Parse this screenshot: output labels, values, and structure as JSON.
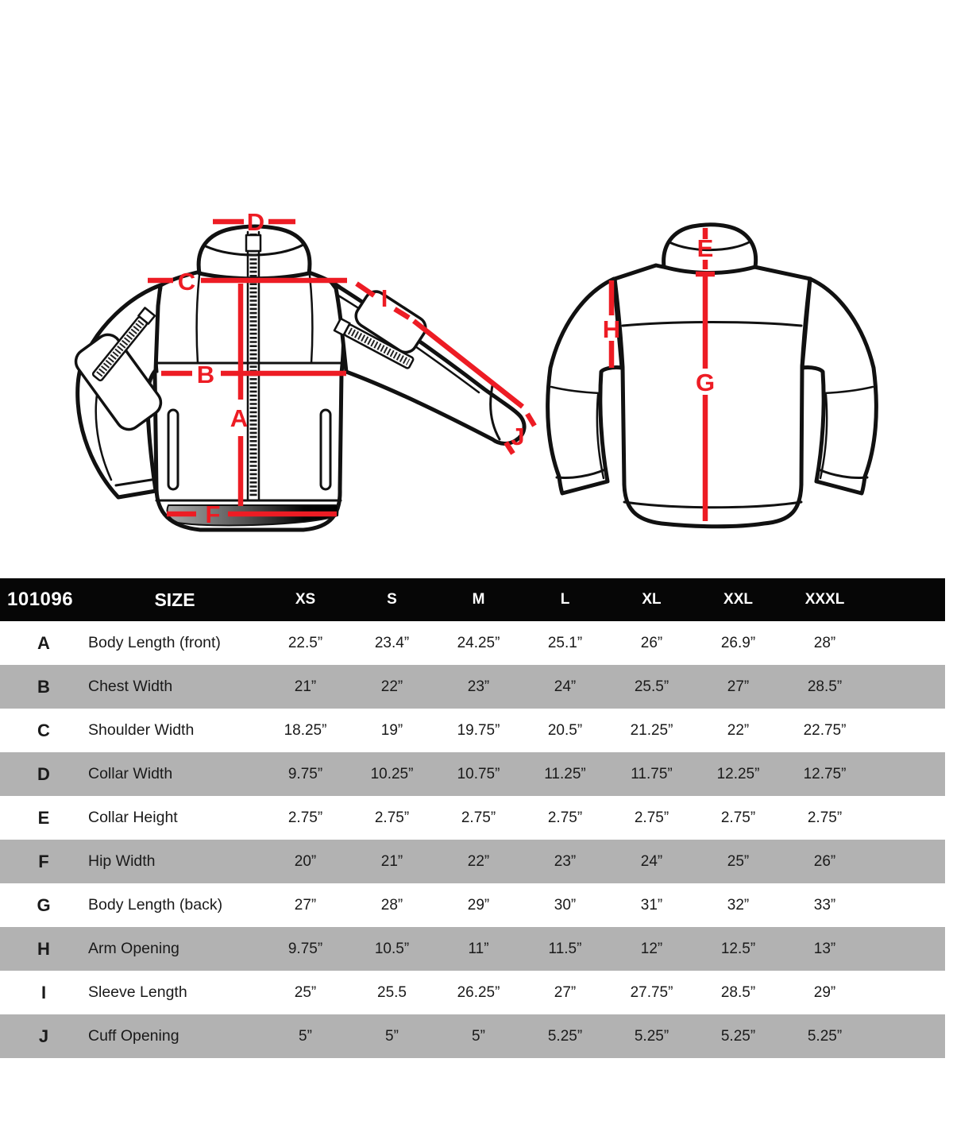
{
  "product_code": "101096",
  "table": {
    "size_header": "SIZE",
    "sizes": [
      "XS",
      "S",
      "M",
      "L",
      "XL",
      "XXL",
      "XXXL"
    ],
    "rows": [
      {
        "letter": "A",
        "label": "Body Length (front)",
        "values": [
          "22.5”",
          "23.4”",
          "24.25”",
          "25.1”",
          "26”",
          "26.9”",
          "28”"
        ]
      },
      {
        "letter": "B",
        "label": "Chest Width",
        "values": [
          "21”",
          "22”",
          "23”",
          "24”",
          "25.5”",
          "27”",
          "28.5”"
        ]
      },
      {
        "letter": "C",
        "label": "Shoulder Width",
        "values": [
          "18.25”",
          "19”",
          "19.75”",
          "20.5”",
          "21.25”",
          "22”",
          "22.75”"
        ]
      },
      {
        "letter": "D",
        "label": "Collar Width",
        "values": [
          "9.75”",
          "10.25”",
          "10.75”",
          "11.25”",
          "11.75”",
          "12.25”",
          "12.75”"
        ]
      },
      {
        "letter": "E",
        "label": "Collar Height",
        "values": [
          "2.75”",
          "2.75”",
          "2.75”",
          "2.75”",
          "2.75”",
          "2.75”",
          "2.75”"
        ]
      },
      {
        "letter": "F",
        "label": "Hip Width",
        "values": [
          "20”",
          "21”",
          "22”",
          "23”",
          "24”",
          "25”",
          "26”"
        ]
      },
      {
        "letter": "G",
        "label": "Body Length (back)",
        "values": [
          "27”",
          "28”",
          "29”",
          "30”",
          "31”",
          "32”",
          "33”"
        ]
      },
      {
        "letter": "H",
        "label": "Arm Opening",
        "values": [
          "9.75”",
          "10.5”",
          "11”",
          "11.5”",
          "12”",
          "12.5”",
          "13”"
        ]
      },
      {
        "letter": "I",
        "label": "Sleeve Length",
        "values": [
          "25”",
          "25.5",
          "26.25”",
          "27”",
          "27.75”",
          "28.5”",
          "29”"
        ]
      },
      {
        "letter": "J",
        "label": "Cuff Opening",
        "values": [
          "5”",
          "5”",
          "5”",
          "5.25”",
          "5.25”",
          "5.25”",
          "5.25”"
        ]
      }
    ]
  },
  "diagram": {
    "labels": {
      "a": "A",
      "b": "B",
      "c": "C",
      "d": "D",
      "e": "E",
      "f": "F",
      "g": "G",
      "h": "H",
      "i": "I",
      "j": "J"
    }
  },
  "colors": {
    "accent_red": "#ed1c24",
    "header_bg": "#060606",
    "row_alt": "#b2b2b2",
    "line_art": "#111111"
  }
}
